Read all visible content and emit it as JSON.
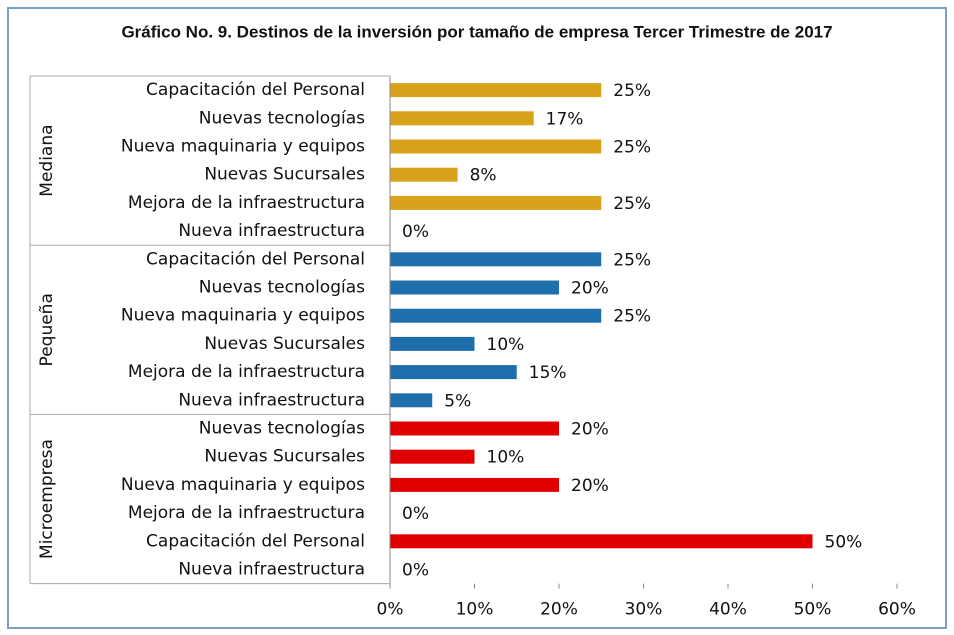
{
  "chart_data": {
    "type": "bar",
    "orientation": "horizontal",
    "title": "Gráfico No. 9.  Destinos de la inversión por tamaño de empresa Tercer Trimestre de 2017",
    "groups": [
      {
        "name": "Mediana",
        "color": "#d9a21b",
        "categories": [
          "Capacitación del Personal",
          "Nuevas tecnologías",
          "Nueva maquinaria y equipos",
          "Nuevas Sucursales",
          "Mejora de la infraestructura",
          "Nueva infraestructura"
        ],
        "values": [
          25,
          17,
          25,
          8,
          25,
          0
        ],
        "value_labels": [
          "25%",
          "17%",
          "25%",
          "8%",
          "25%",
          "0%"
        ]
      },
      {
        "name": "Pequeña",
        "color": "#1f6fad",
        "categories": [
          "Capacitación del Personal",
          "Nuevas tecnologías",
          "Nueva maquinaria y equipos",
          "Nuevas Sucursales",
          "Mejora de la infraestructura",
          "Nueva infraestructura"
        ],
        "values": [
          25,
          20,
          25,
          10,
          15,
          5
        ],
        "value_labels": [
          "25%",
          "20%",
          "25%",
          "10%",
          "15%",
          "5%"
        ]
      },
      {
        "name": "Microempresa",
        "color": "#e00000",
        "categories": [
          "Nuevas tecnologías",
          "Nuevas Sucursales",
          "Nueva maquinaria y equipos",
          "Mejora de la infraestructura",
          "Capacitación del Personal",
          "Nueva infraestructura"
        ],
        "values": [
          20,
          10,
          20,
          0,
          50,
          0
        ],
        "value_labels": [
          "20%",
          "10%",
          "20%",
          "0%",
          "50%",
          "0%"
        ]
      }
    ],
    "xlim": [
      0,
      60
    ],
    "xticks": [
      {
        "value": 0,
        "label": "0%"
      },
      {
        "value": 10,
        "label": "10%"
      },
      {
        "value": 20,
        "label": "20%"
      },
      {
        "value": 30,
        "label": "30%"
      },
      {
        "value": 40,
        "label": "40%"
      },
      {
        "value": 50,
        "label": "50%"
      },
      {
        "value": 60,
        "label": "60%"
      }
    ]
  }
}
